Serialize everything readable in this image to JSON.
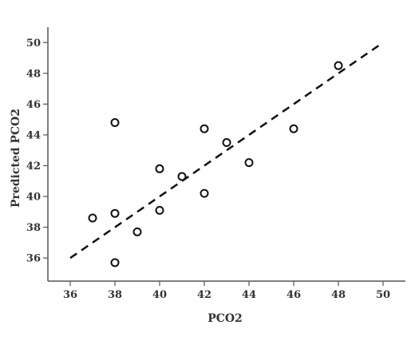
{
  "chart_data": {
    "type": "scatter",
    "xlabel": "PCO2",
    "ylabel": "Predicted PCO2",
    "xlim": [
      35,
      51
    ],
    "ylim": [
      34.5,
      51
    ],
    "xticks": [
      36,
      38,
      40,
      42,
      44,
      46,
      48,
      50
    ],
    "yticks": [
      36,
      38,
      40,
      42,
      44,
      46,
      48,
      50
    ],
    "grid": false,
    "marker": "open-circle",
    "series": [
      {
        "points": [
          {
            "x": 37,
            "y": 38.6
          },
          {
            "x": 38,
            "y": 44.8
          },
          {
            "x": 38,
            "y": 38.9
          },
          {
            "x": 38,
            "y": 35.7
          },
          {
            "x": 39,
            "y": 37.7
          },
          {
            "x": 40,
            "y": 41.8
          },
          {
            "x": 40,
            "y": 39.1
          },
          {
            "x": 41,
            "y": 41.3
          },
          {
            "x": 42,
            "y": 44.4
          },
          {
            "x": 42,
            "y": 40.2
          },
          {
            "x": 43,
            "y": 43.5
          },
          {
            "x": 44,
            "y": 42.2
          },
          {
            "x": 46,
            "y": 44.4
          },
          {
            "x": 48,
            "y": 48.5
          }
        ]
      }
    ],
    "reference_line": {
      "style": "dashed",
      "from": {
        "x": 36,
        "y": 36
      },
      "to": {
        "x": 50,
        "y": 50
      }
    },
    "colors": {
      "axis": "#555555",
      "marker": "#111111",
      "line": "#111111",
      "text": "#333333"
    }
  }
}
